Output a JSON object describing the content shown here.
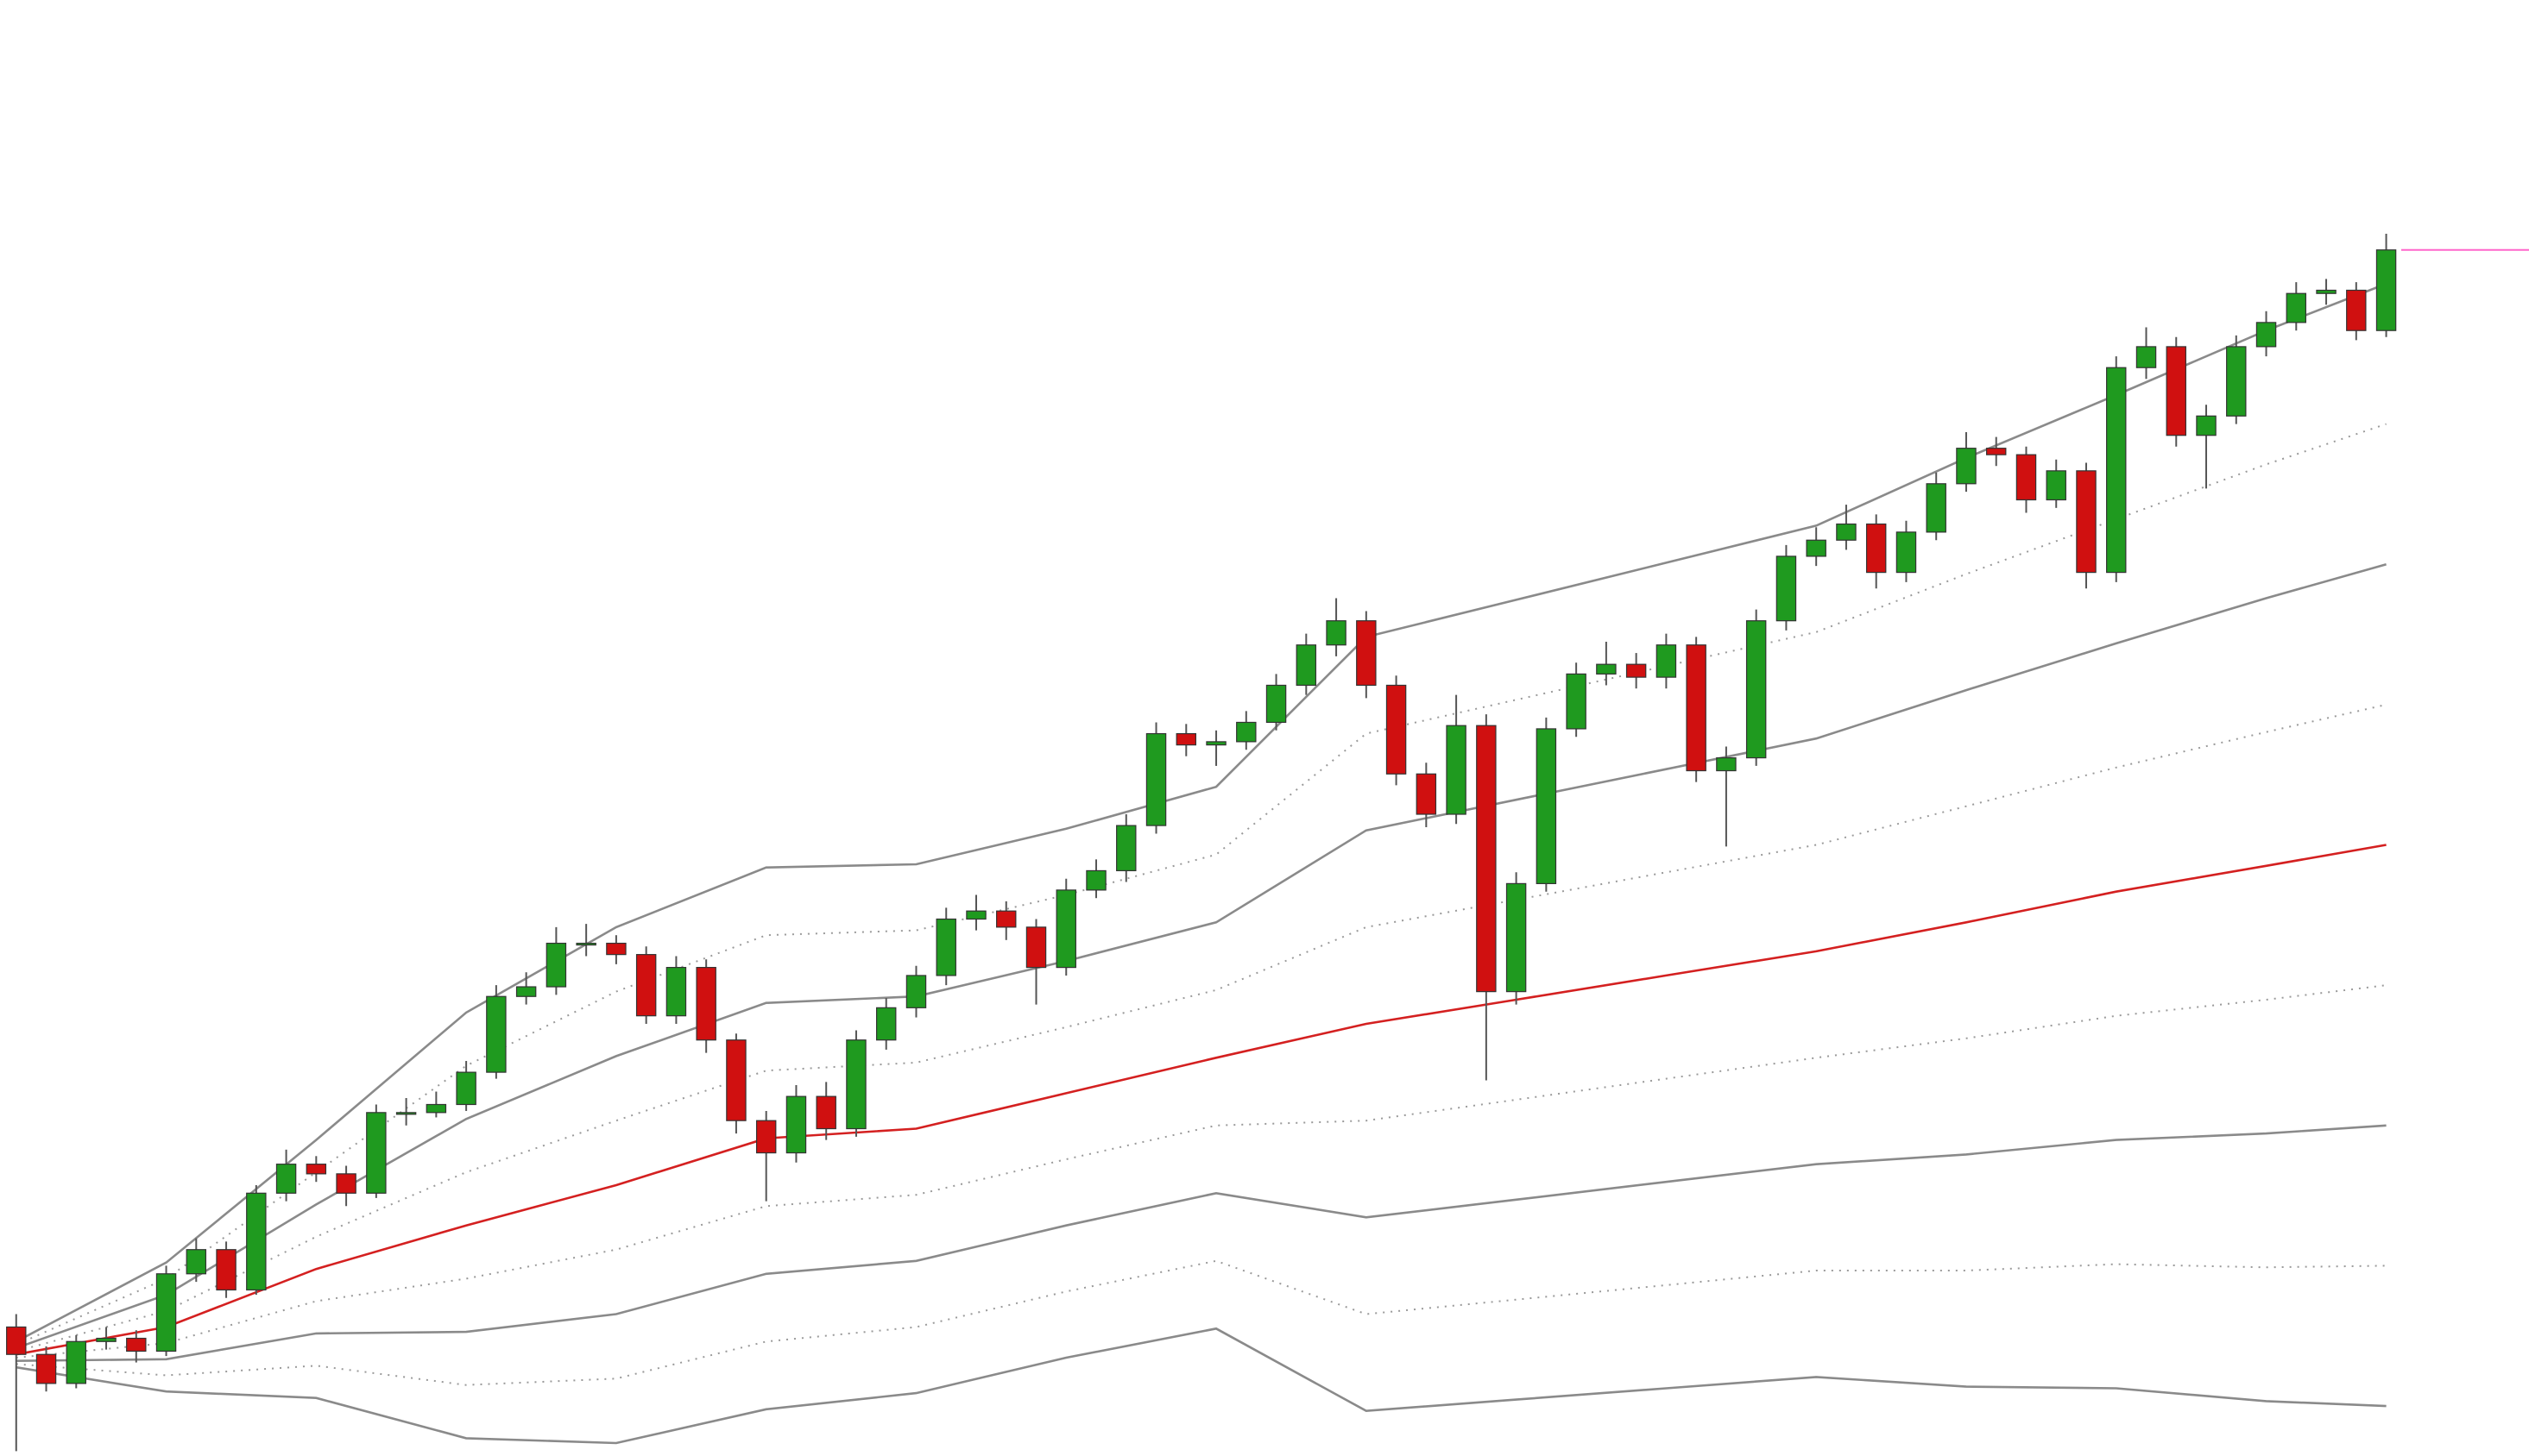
{
  "chart_data": {
    "type": "candlestick",
    "xlim": [
      -0.54,
      83.76
    ],
    "ylim": [
      0,
      903
    ],
    "up_color": "#1f9a1f",
    "down_color": "#d01010",
    "wick_color": "#555555",
    "last_price_line": true,
    "last_price_color": "#ff66cc",
    "open": [
      80,
      63,
      45,
      71,
      73,
      65,
      113,
      128,
      103,
      163,
      181,
      175,
      163,
      213,
      213,
      218,
      238,
      285,
      291,
      318,
      318,
      311,
      273,
      303,
      258,
      208,
      188,
      223,
      203,
      258,
      278,
      298,
      333,
      338,
      328,
      303,
      351,
      363,
      391,
      448,
      441,
      443,
      455,
      478,
      503,
      518,
      478,
      423,
      398,
      453,
      288,
      355,
      451,
      485,
      491,
      483,
      503,
      425,
      433,
      518,
      558,
      568,
      578,
      548,
      573,
      603,
      625,
      621,
      593,
      611,
      548,
      675,
      688,
      633,
      645,
      688,
      703,
      721,
      723,
      698
    ],
    "high": [
      88,
      68,
      75,
      80,
      78,
      118,
      135,
      133,
      168,
      190,
      186,
      180,
      218,
      222,
      226,
      245,
      292,
      300,
      328,
      330,
      323,
      316,
      310,
      308,
      262,
      214,
      230,
      232,
      264,
      284,
      304,
      340,
      348,
      344,
      333,
      358,
      370,
      398,
      455,
      454,
      450,
      462,
      485,
      510,
      532,
      524,
      484,
      430,
      472,
      460,
      362,
      458,
      492,
      505,
      498,
      510,
      508,
      440,
      525,
      565,
      576,
      590,
      584,
      580,
      610,
      635,
      632,
      626,
      618,
      616,
      682,
      700,
      694,
      652,
      695,
      710,
      728,
      730,
      728,
      758
    ],
    "low": [
      3,
      40,
      42,
      66,
      58,
      62,
      108,
      98,
      100,
      158,
      170,
      155,
      160,
      205,
      210,
      214,
      234,
      280,
      286,
      310,
      305,
      268,
      268,
      250,
      200,
      158,
      182,
      196,
      198,
      252,
      272,
      292,
      326,
      320,
      280,
      298,
      346,
      356,
      386,
      434,
      428,
      438,
      450,
      472,
      496,
      470,
      416,
      390,
      392,
      233,
      280,
      350,
      446,
      478,
      476,
      476,
      418,
      378,
      428,
      512,
      552,
      562,
      538,
      542,
      568,
      598,
      614,
      585,
      588,
      538,
      542,
      668,
      626,
      600,
      640,
      682,
      698,
      714,
      692,
      694
    ],
    "close": [
      63,
      45,
      71,
      73,
      65,
      113,
      128,
      103,
      163,
      181,
      175,
      163,
      213,
      213,
      218,
      238,
      285,
      291,
      318,
      318,
      311,
      273,
      303,
      258,
      208,
      188,
      223,
      203,
      258,
      278,
      298,
      333,
      338,
      328,
      303,
      351,
      363,
      391,
      448,
      441,
      443,
      455,
      478,
      503,
      518,
      478,
      423,
      398,
      453,
      288,
      355,
      451,
      485,
      491,
      483,
      503,
      425,
      433,
      518,
      558,
      568,
      578,
      548,
      573,
      603,
      625,
      621,
      593,
      611,
      548,
      675,
      688,
      633,
      645,
      688,
      703,
      721,
      723,
      698,
      748
    ],
    "band_x": [
      0,
      5,
      10,
      15,
      20,
      25,
      30,
      35,
      40,
      45,
      50,
      55,
      60,
      65,
      70,
      75,
      79
    ],
    "lines": [
      {
        "style": "solid",
        "color": "#8a8a8a",
        "values": [
          71,
          120,
          196,
          275,
          328,
          365,
          367,
          389,
          415,
          508,
          531,
          554,
          577,
          619,
          658,
          698,
          727
        ]
      },
      {
        "style": "dotted",
        "color": "#9a9a9a",
        "values": [
          69,
          110,
          176,
          242,
          288,
          323,
          326,
          348,
          373,
          448,
          469,
          490,
          511,
          547,
          581,
          615,
          640
        ]
      },
      {
        "style": "solid",
        "color": "#8a8a8a",
        "values": [
          67,
          100,
          156,
          209,
          248,
          281,
          285,
          307,
          331,
          388,
          407,
          426,
          445,
          475,
          504,
          532,
          553
        ]
      },
      {
        "style": "dotted",
        "color": "#9a9a9a",
        "values": [
          65,
          90,
          136,
          176,
          208,
          239,
          244,
          266,
          289,
          328,
          345,
          362,
          379,
          403,
          427,
          449,
          466
        ]
      },
      {
        "style": "solid",
        "color": "#d42020",
        "values": [
          63,
          80,
          116,
          143,
          168,
          197,
          203,
          225,
          247,
          268,
          283,
          298,
          313,
          331,
          350,
          366,
          379
        ]
      },
      {
        "style": "dotted",
        "color": "#9a9a9a",
        "values": [
          61,
          70,
          96,
          110,
          128,
          155,
          162,
          184,
          205,
          208,
          221,
          234,
          247,
          259,
          273,
          283,
          292
        ]
      },
      {
        "style": "solid",
        "color": "#8a8a8a",
        "values": [
          59,
          60,
          76,
          77,
          88,
          113,
          121,
          143,
          163,
          148,
          159,
          170,
          181,
          187,
          196,
          200,
          205
        ]
      },
      {
        "style": "dotted",
        "color": "#9a9a9a",
        "values": [
          57,
          50,
          56,
          44,
          48,
          71,
          80,
          102,
          121,
          88,
          97,
          106,
          115,
          115,
          119,
          117,
          118
        ]
      },
      {
        "style": "solid",
        "color": "#8a8a8a",
        "values": [
          55,
          40,
          36,
          11,
          8,
          29,
          39,
          61,
          79,
          28,
          35,
          42,
          49,
          43,
          42,
          34,
          31
        ]
      }
    ]
  }
}
